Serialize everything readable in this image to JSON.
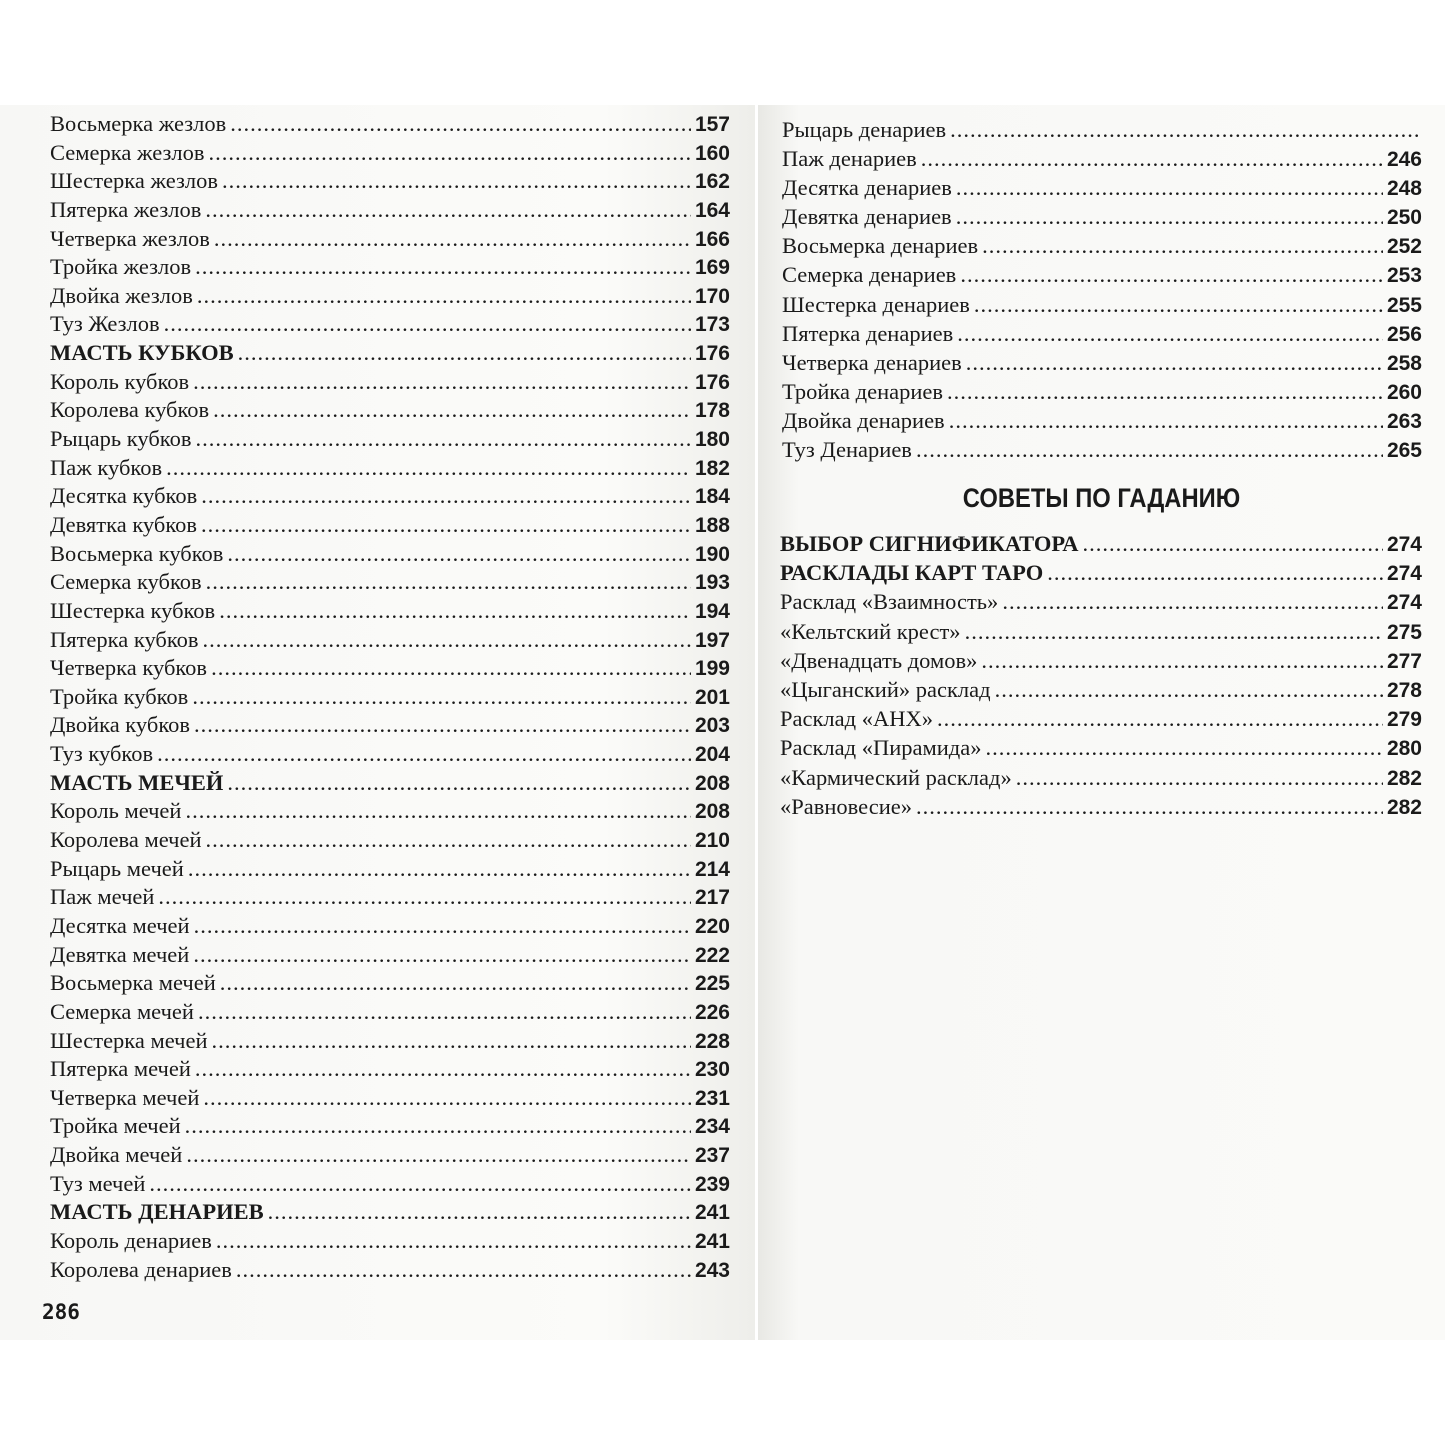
{
  "left_page": {
    "page_number": "286",
    "entries": [
      {
        "title": "Восьмерка жезлов",
        "page": "157"
      },
      {
        "title": "Семерка жезлов",
        "page": "160"
      },
      {
        "title": "Шестерка жезлов",
        "page": "162"
      },
      {
        "title": "Пятерка жезлов",
        "page": "164"
      },
      {
        "title": "Четверка жезлов",
        "page": "166"
      },
      {
        "title": "Тройка жезлов",
        "page": "169"
      },
      {
        "title": "Двойка жезлов",
        "page": "170"
      },
      {
        "title": "Туз Жезлов",
        "page": "173"
      },
      {
        "title": "МАСТЬ КУБКОВ",
        "page": "176",
        "bold": true
      },
      {
        "title": "Король кубков",
        "page": "176"
      },
      {
        "title": "Королева кубков",
        "page": "178"
      },
      {
        "title": "Рыцарь кубков",
        "page": "180"
      },
      {
        "title": "Паж кубков",
        "page": "182"
      },
      {
        "title": "Десятка кубков",
        "page": "184"
      },
      {
        "title": "Девятка кубков",
        "page": "188"
      },
      {
        "title": "Восьмерка кубков",
        "page": "190"
      },
      {
        "title": "Семерка кубков",
        "page": "193"
      },
      {
        "title": "Шестерка кубков",
        "page": "194"
      },
      {
        "title": "Пятерка кубков",
        "page": "197"
      },
      {
        "title": "Четверка кубков",
        "page": "199"
      },
      {
        "title": "Тройка кубков",
        "page": "201"
      },
      {
        "title": "Двойка кубков",
        "page": "203"
      },
      {
        "title": "Туз кубков",
        "page": "204"
      },
      {
        "title": "МАСТЬ МЕЧЕЙ",
        "page": "208",
        "bold": true
      },
      {
        "title": "Король мечей",
        "page": "208"
      },
      {
        "title": "Королева мечей",
        "page": "210"
      },
      {
        "title": "Рыцарь мечей",
        "page": "214"
      },
      {
        "title": "Паж мечей",
        "page": "217"
      },
      {
        "title": "Десятка мечей",
        "page": "220"
      },
      {
        "title": "Девятка мечей",
        "page": "222"
      },
      {
        "title": "Восьмерка мечей",
        "page": "225"
      },
      {
        "title": "Семерка мечей",
        "page": "226"
      },
      {
        "title": "Шестерка мечей",
        "page": "228"
      },
      {
        "title": "Пятерка мечей",
        "page": "230"
      },
      {
        "title": "Четверка мечей",
        "page": "231"
      },
      {
        "title": "Тройка мечей",
        "page": "234"
      },
      {
        "title": "Двойка мечей",
        "page": "237"
      },
      {
        "title": "Туз мечей",
        "page": "239"
      },
      {
        "title": "МАСТЬ ДЕНАРИЕВ",
        "page": "241",
        "bold": true
      },
      {
        "title": "Король денариев",
        "page": "241"
      },
      {
        "title": "Королева денариев",
        "page": "243"
      }
    ]
  },
  "right_page": {
    "entries": [
      {
        "title": "Рыцарь денариев",
        "page": ""
      },
      {
        "title": "Паж денариев",
        "page": "246"
      },
      {
        "title": "Десятка денариев",
        "page": "248"
      },
      {
        "title": "Девятка денариев",
        "page": "250"
      },
      {
        "title": "Восьмерка денариев",
        "page": "252"
      },
      {
        "title": "Семерка денариев",
        "page": "253"
      },
      {
        "title": "Шестерка денариев",
        "page": "255"
      },
      {
        "title": "Пятерка денариев",
        "page": "256"
      },
      {
        "title": "Четверка денариев",
        "page": "258"
      },
      {
        "title": "Тройка денариев",
        "page": "260"
      },
      {
        "title": "Двойка денариев",
        "page": "263"
      },
      {
        "title": "Туз Денариев",
        "page": "265"
      }
    ],
    "section_heading": "СОВЕТЫ ПО ГАДАНИЮ",
    "section_entries": [
      {
        "title": "ВЫБОР СИГНИФИКАТОРА",
        "page": "274",
        "bold": true
      },
      {
        "title": "РАСКЛАДЫ КАРТ ТАРО",
        "page": "274",
        "bold": true
      },
      {
        "title": "Расклад «Взаимность»",
        "page": "274"
      },
      {
        "title": "«Кельтский крест»",
        "page": "275"
      },
      {
        "title": "«Двенадцать домов»",
        "page": "277"
      },
      {
        "title": "«Цыганский» расклад",
        "page": "278"
      },
      {
        "title": "Расклад «АНХ»",
        "page": "279"
      },
      {
        "title": "Расклад «Пирамида»",
        "page": "280"
      },
      {
        "title": "«Кармический расклад»",
        "page": "282"
      },
      {
        "title": "«Равновесие»",
        "page": "282"
      }
    ]
  }
}
